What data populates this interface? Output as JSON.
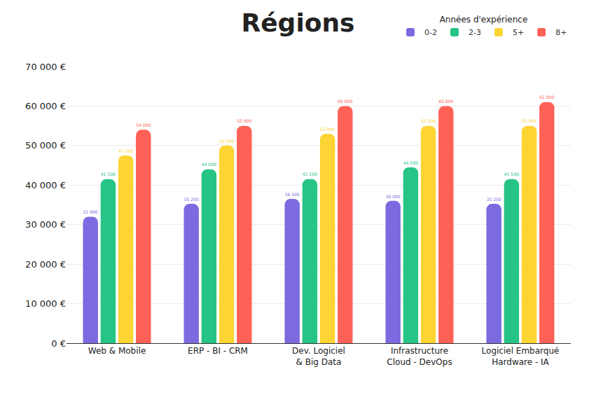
{
  "chart_data": {
    "type": "bar",
    "title": "Régions",
    "legend_title": "Années d'expérience",
    "categories": [
      "Web & Mobile",
      "ERP - BI - CRM",
      "Dev. Logiciel\n& Big Data",
      "Infrastructure\nCloud - DevOps",
      "Logiciel Embarqué\nHardware - IA"
    ],
    "series": [
      {
        "name": "0-2",
        "color": "#7b6ae0",
        "values": [
          32000,
          35250,
          36500,
          36000,
          35250
        ],
        "value_labels": [
          "32 000",
          "35 250",
          "36 500",
          "36 000",
          "35 250"
        ]
      },
      {
        "name": "2-3",
        "color": "#26c485",
        "values": [
          41500,
          44000,
          41500,
          44500,
          41500
        ],
        "value_labels": [
          "41 500",
          "44 000",
          "41 500",
          "44 500",
          "41 500"
        ]
      },
      {
        "name": "5+",
        "color": "#fcd535",
        "values": [
          47500,
          50000,
          53000,
          55000,
          55000
        ],
        "value_labels": [
          "47 500",
          "50 000",
          "53 000",
          "55 000",
          "55 000"
        ]
      },
      {
        "name": "8+",
        "color": "#fe6257",
        "values": [
          54000,
          55000,
          60000,
          60000,
          61000
        ],
        "value_labels": [
          "54 000",
          "55 000",
          "60 000",
          "60 000",
          "61 000"
        ]
      }
    ],
    "ylim": [
      0,
      70000
    ],
    "yticks": [
      {
        "value": 0,
        "label": "0 €"
      },
      {
        "value": 10000,
        "label": "10 000 €"
      },
      {
        "value": 20000,
        "label": "20 000 €"
      },
      {
        "value": 30000,
        "label": "30 000 €"
      },
      {
        "value": 40000,
        "label": "40 000 €"
      },
      {
        "value": 50000,
        "label": "50 000 €"
      },
      {
        "value": 60000,
        "label": "60 000 €"
      },
      {
        "value": 70000,
        "label": "70 000 €"
      }
    ],
    "grid": true,
    "legend": "top right",
    "data_labels": true
  }
}
